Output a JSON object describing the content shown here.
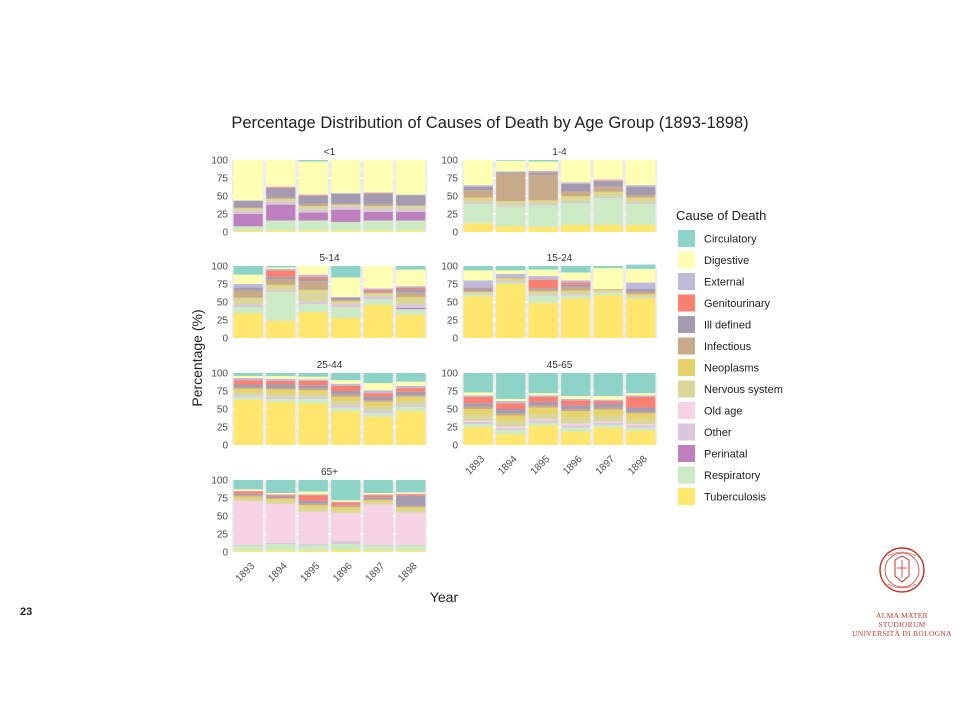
{
  "page": {
    "number": "23"
  },
  "logo": {
    "seal_text": "ALMA MATER STUDIORUM A.D. 1088",
    "line1": "ALMA MATER STUDIORUM",
    "line2": "UNIVERSITÀ DI BOLOGNA"
  },
  "colors": {
    "Circulatory": "#8dd3c7",
    "Digestive": "#ffffb3",
    "External": "#bebada",
    "Genitourinary": "#fb8072",
    "Ill defined": "#a59bb0",
    "Infectious": "#c8a98a",
    "Neoplasms": "#e6d36a",
    "Nervous system": "#d9d79a",
    "Old age": "#f6d3e4",
    "Other": "#d9c8dc",
    "Perinatal": "#bd7fbd",
    "Respiratory": "#ccebc5",
    "Tuberculosis": "#ffe66d"
  },
  "chart_data": {
    "type": "bar",
    "stacked": true,
    "title": "Percentage Distribution of Causes of Death by Age Group (1893-1898)",
    "xlabel": "Year",
    "ylabel": "Percentage (%)",
    "ylim": [
      0,
      100
    ],
    "yticks": [
      0,
      25,
      50,
      75,
      100
    ],
    "categories": [
      "1893",
      "1894",
      "1895",
      "1896",
      "1897",
      "1898"
    ],
    "legend": {
      "title": "Cause of Death",
      "position": "right"
    },
    "series_order": [
      "Tuberculosis",
      "Respiratory",
      "Perinatal",
      "Other",
      "Old age",
      "Nervous system",
      "Neoplasms",
      "Infectious",
      "Ill defined",
      "Genitourinary",
      "External",
      "Digestive",
      "Circulatory"
    ],
    "legend_order": [
      "Circulatory",
      "Digestive",
      "External",
      "Genitourinary",
      "Ill defined",
      "Infectious",
      "Neoplasms",
      "Nervous system",
      "Old age",
      "Other",
      "Perinatal",
      "Respiratory",
      "Tuberculosis"
    ],
    "panels": [
      {
        "label": "<1",
        "values": {
          "Tuberculosis": [
            2,
            2,
            2,
            2,
            2,
            2
          ],
          "Respiratory": [
            6,
            14,
            14,
            12,
            14,
            14
          ],
          "Perinatal": [
            17,
            22,
            11,
            17,
            12,
            12
          ],
          "Other": [
            4,
            4,
            4,
            4,
            4,
            4
          ],
          "Old age": [
            0,
            0,
            0,
            0,
            0,
            0
          ],
          "Nervous system": [
            4,
            4,
            5,
            3,
            4,
            4
          ],
          "Neoplasms": [
            0,
            0,
            0,
            0,
            0,
            0
          ],
          "Infectious": [
            1,
            2,
            3,
            1,
            2,
            1
          ],
          "Ill defined": [
            9,
            13,
            11,
            14,
            15,
            14
          ],
          "Genitourinary": [
            0,
            1,
            1,
            0,
            1,
            0
          ],
          "External": [
            1,
            1,
            1,
            1,
            1,
            1
          ],
          "Digestive": [
            56,
            37,
            46,
            46,
            45,
            48
          ],
          "Circulatory": [
            0,
            0,
            2,
            0,
            0,
            0
          ]
        }
      },
      {
        "label": "1-4",
        "values": {
          "Tuberculosis": [
            12,
            8,
            7,
            10,
            10,
            10
          ],
          "Respiratory": [
            27,
            27,
            30,
            30,
            37,
            29
          ],
          "Perinatal": [
            0,
            0,
            0,
            0,
            0,
            0
          ],
          "Other": [
            2,
            2,
            2,
            2,
            2,
            2
          ],
          "Old age": [
            0,
            0,
            0,
            0,
            0,
            0
          ],
          "Nervous system": [
            5,
            5,
            4,
            6,
            5,
            5
          ],
          "Neoplasms": [
            2,
            1,
            1,
            2,
            2,
            2
          ],
          "Infectious": [
            10,
            38,
            35,
            6,
            7,
            3
          ],
          "Ill defined": [
            5,
            2,
            3,
            11,
            7,
            12
          ],
          "Genitourinary": [
            0,
            0,
            1,
            0,
            1,
            0
          ],
          "External": [
            2,
            1,
            2,
            2,
            2,
            2
          ],
          "Digestive": [
            35,
            15,
            13,
            31,
            27,
            35
          ],
          "Circulatory": [
            0,
            1,
            2,
            0,
            0,
            0
          ]
        }
      },
      {
        "label": "5-14",
        "values": {
          "Tuberculosis": [
            34,
            24,
            36,
            28,
            46,
            32
          ],
          "Respiratory": [
            9,
            40,
            11,
            15,
            8,
            8
          ],
          "Perinatal": [
            0,
            0,
            0,
            0,
            0,
            2
          ],
          "Other": [
            4,
            2,
            4,
            4,
            4,
            5
          ],
          "Old age": [
            0,
            0,
            0,
            0,
            0,
            0
          ],
          "Nervous system": [
            8,
            6,
            14,
            3,
            2,
            8
          ],
          "Neoplasms": [
            1,
            2,
            2,
            1,
            2,
            2
          ],
          "Infectious": [
            10,
            8,
            12,
            2,
            1,
            6
          ],
          "Ill defined": [
            4,
            3,
            3,
            3,
            2,
            5
          ],
          "Genitourinary": [
            0,
            9,
            3,
            0,
            2,
            2
          ],
          "External": [
            5,
            2,
            3,
            1,
            2,
            2
          ],
          "Digestive": [
            13,
            2,
            12,
            27,
            31,
            23
          ],
          "Circulatory": [
            12,
            2,
            0,
            16,
            0,
            5
          ]
        }
      },
      {
        "label": "15-24",
        "values": {
          "Tuberculosis": [
            58,
            75,
            49,
            55,
            60,
            55
          ],
          "Respiratory": [
            2,
            2,
            10,
            4,
            3,
            1
          ],
          "Perinatal": [
            0,
            0,
            0,
            0,
            0,
            0
          ],
          "Other": [
            1,
            2,
            2,
            2,
            1,
            1
          ],
          "Old age": [
            0,
            0,
            0,
            0,
            0,
            0
          ],
          "Nervous system": [
            2,
            2,
            2,
            3,
            2,
            2
          ],
          "Neoplasms": [
            1,
            2,
            2,
            2,
            1,
            2
          ],
          "Infectious": [
            2,
            1,
            2,
            5,
            1,
            3
          ],
          "Ill defined": [
            3,
            0,
            2,
            3,
            0,
            4
          ],
          "Genitourinary": [
            1,
            0,
            12,
            3,
            0,
            0
          ],
          "External": [
            10,
            5,
            5,
            3,
            0,
            9
          ],
          "Digestive": [
            14,
            5,
            9,
            11,
            29,
            19
          ],
          "Circulatory": [
            6,
            6,
            5,
            9,
            3,
            6
          ]
        }
      },
      {
        "label": "25-44",
        "values": {
          "Tuberculosis": [
            63,
            60,
            58,
            47,
            39,
            47
          ],
          "Respiratory": [
            4,
            4,
            6,
            5,
            5,
            6
          ],
          "Perinatal": [
            0,
            0,
            0,
            0,
            0,
            0
          ],
          "Other": [
            2,
            3,
            3,
            4,
            4,
            3
          ],
          "Old age": [
            0,
            0,
            0,
            0,
            0,
            0
          ],
          "Nervous system": [
            4,
            4,
            4,
            5,
            6,
            5
          ],
          "Neoplasms": [
            5,
            6,
            5,
            6,
            6,
            6
          ],
          "Infectious": [
            2,
            2,
            3,
            3,
            2,
            2
          ],
          "Ill defined": [
            4,
            5,
            4,
            5,
            5,
            5
          ],
          "Genitourinary": [
            6,
            5,
            6,
            7,
            5,
            5
          ],
          "External": [
            3,
            3,
            2,
            3,
            4,
            3
          ],
          "Digestive": [
            3,
            4,
            4,
            5,
            10,
            6
          ],
          "Circulatory": [
            4,
            4,
            5,
            10,
            14,
            12
          ]
        }
      },
      {
        "label": "45-65",
        "values": {
          "Tuberculosis": [
            25,
            15,
            27,
            19,
            24,
            20
          ],
          "Respiratory": [
            4,
            6,
            4,
            5,
            4,
            4
          ],
          "Perinatal": [
            0,
            0,
            0,
            0,
            0,
            0
          ],
          "Other": [
            3,
            2,
            3,
            3,
            3,
            3
          ],
          "Old age": [
            2,
            3,
            2,
            3,
            2,
            2
          ],
          "Nervous system": [
            8,
            8,
            7,
            8,
            8,
            7
          ],
          "Neoplasms": [
            8,
            7,
            9,
            9,
            8,
            8
          ],
          "Infectious": [
            3,
            3,
            3,
            3,
            3,
            2
          ],
          "Ill defined": [
            5,
            6,
            5,
            5,
            5,
            6
          ],
          "Genitourinary": [
            9,
            8,
            7,
            7,
            4,
            15
          ],
          "External": [
            2,
            3,
            2,
            2,
            2,
            2
          ],
          "Digestive": [
            4,
            3,
            3,
            4,
            5,
            3
          ],
          "Circulatory": [
            27,
            36,
            28,
            32,
            32,
            28
          ]
        }
      },
      {
        "label": "65+",
        "values": {
          "Tuberculosis": [
            2,
            2,
            2,
            3,
            2,
            2
          ],
          "Respiratory": [
            7,
            9,
            7,
            8,
            7,
            7
          ],
          "Perinatal": [
            0,
            0,
            0,
            0,
            0,
            0
          ],
          "Other": [
            1,
            2,
            2,
            4,
            1,
            1
          ],
          "Old age": [
            61,
            54,
            45,
            39,
            56,
            45
          ],
          "Nervous system": [
            3,
            4,
            5,
            4,
            3,
            4
          ],
          "Neoplasms": [
            3,
            3,
            4,
            4,
            3,
            3
          ],
          "Infectious": [
            2,
            1,
            2,
            2,
            1,
            2
          ],
          "Ill defined": [
            2,
            2,
            4,
            1,
            3,
            14
          ],
          "Genitourinary": [
            3,
            2,
            8,
            4,
            3,
            2
          ],
          "External": [
            1,
            1,
            1,
            1,
            1,
            1
          ],
          "Digestive": [
            2,
            2,
            4,
            2,
            2,
            2
          ],
          "Circulatory": [
            13,
            18,
            16,
            28,
            18,
            17
          ]
        }
      }
    ]
  }
}
